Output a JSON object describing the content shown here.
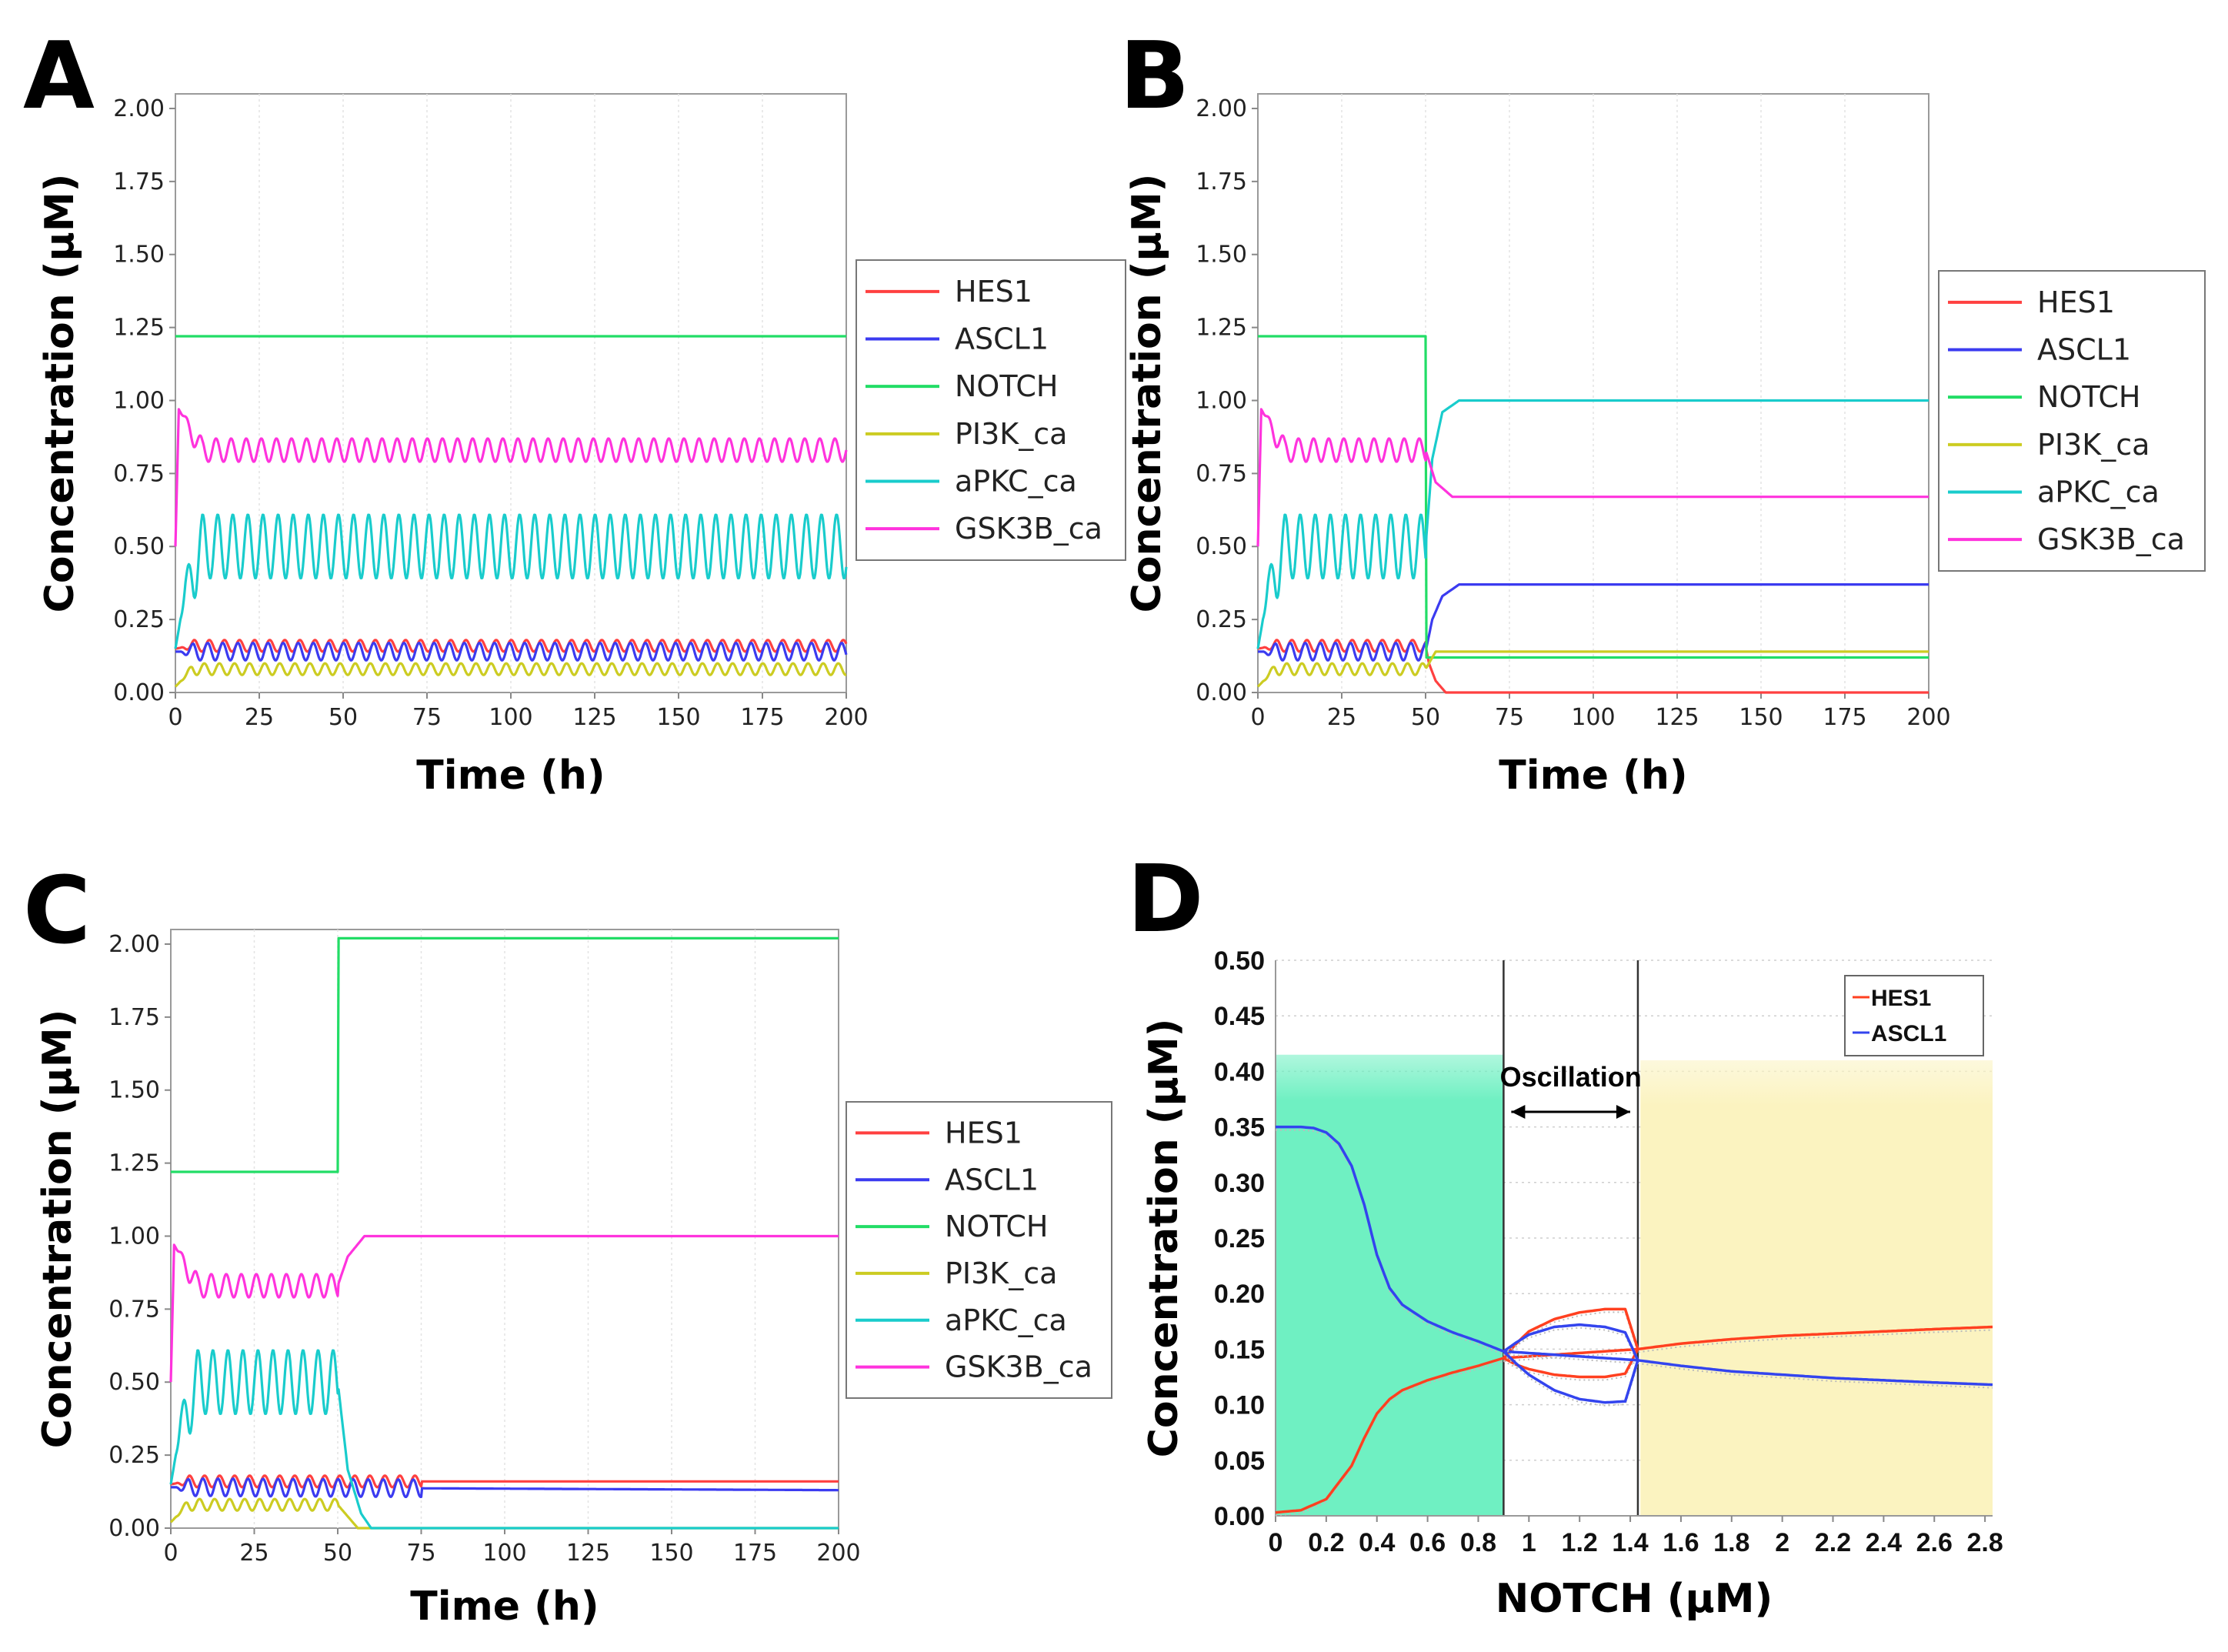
{
  "chart_data": [
    {
      "panel": "A",
      "type": "line",
      "xlabel": "Time (h)",
      "ylabel": "Concentration (µM)",
      "xlim": [
        0,
        200
      ],
      "ylim": [
        0,
        2.05
      ],
      "xticks": [
        "0",
        "25",
        "50",
        "75",
        "100",
        "125",
        "150",
        "175",
        "200"
      ],
      "yticks": [
        "0.00",
        "0.25",
        "0.50",
        "0.75",
        "1.00",
        "1.25",
        "1.50",
        "1.75",
        "2.00"
      ],
      "legend": [
        "HES1",
        "ASCL1",
        "NOTCH",
        "PI3K_ca",
        "aPKC_ca",
        "GSK3B_ca"
      ],
      "series": [
        {
          "name": "HES1",
          "color": "#ff4040",
          "x": [
            0,
            5,
            200
          ],
          "values": [
            0.15,
            0.16,
            0.16
          ],
          "oscillation": {
            "amplitude": 0.02,
            "period_h": 4.5
          }
        },
        {
          "name": "ASCL1",
          "color": "#3b3bf0",
          "x": [
            0,
            5,
            200
          ],
          "values": [
            0.14,
            0.14,
            0.14
          ],
          "oscillation": {
            "amplitude": 0.03,
            "period_h": 4.5
          }
        },
        {
          "name": "NOTCH",
          "color": "#22dd66",
          "x": [
            0,
            200
          ],
          "values": [
            1.22,
            1.22
          ]
        },
        {
          "name": "PI3K_ca",
          "color": "#cccc22",
          "x": [
            0,
            5,
            200
          ],
          "values": [
            0.02,
            0.08,
            0.08
          ],
          "oscillation": {
            "amplitude": 0.02,
            "period_h": 4.5
          }
        },
        {
          "name": "aPKC_ca",
          "color": "#19cccc",
          "x": [
            0,
            3,
            8,
            200
          ],
          "values": [
            0.15,
            0.35,
            0.5,
            0.5
          ],
          "oscillation": {
            "amplitude": 0.11,
            "period_h": 4.5
          }
        },
        {
          "name": "GSK3B_ca",
          "color": "#ff33dd",
          "x": [
            0,
            1,
            8,
            200
          ],
          "values": [
            0.5,
            0.97,
            0.83,
            0.83
          ],
          "oscillation": {
            "amplitude": 0.04,
            "period_h": 4.5
          }
        }
      ]
    },
    {
      "panel": "B",
      "type": "line",
      "xlabel": "Time (h)",
      "ylabel": "Concentration (µM)",
      "xlim": [
        0,
        200
      ],
      "ylim": [
        0,
        2.05
      ],
      "xticks": [
        "0",
        "25",
        "50",
        "75",
        "100",
        "125",
        "150",
        "175",
        "200"
      ],
      "yticks": [
        "0.00",
        "0.25",
        "0.50",
        "0.75",
        "1.00",
        "1.25",
        "1.50",
        "1.75",
        "2.00"
      ],
      "legend": [
        "HES1",
        "ASCL1",
        "NOTCH",
        "PI3K_ca",
        "aPKC_ca",
        "GSK3B_ca"
      ],
      "series": [
        {
          "name": "HES1",
          "color": "#ff4040",
          "x": [
            0,
            5,
            50,
            51,
            53,
            56,
            200
          ],
          "values": [
            0.15,
            0.16,
            0.16,
            0.1,
            0.04,
            0,
            0
          ],
          "oscillation": {
            "amplitude": 0.02,
            "period_h": 4.5,
            "until": 50
          }
        },
        {
          "name": "ASCL1",
          "color": "#3b3bf0",
          "x": [
            0,
            5,
            50,
            52,
            55,
            60,
            200
          ],
          "values": [
            0.14,
            0.14,
            0.14,
            0.25,
            0.33,
            0.37,
            0.37
          ],
          "oscillation": {
            "amplitude": 0.03,
            "period_h": 4.5,
            "until": 50
          }
        },
        {
          "name": "NOTCH",
          "color": "#22dd66",
          "x": [
            0,
            50,
            50.2,
            200
          ],
          "values": [
            1.22,
            1.22,
            0.12,
            0.12
          ]
        },
        {
          "name": "PI3K_ca",
          "color": "#cccc22",
          "x": [
            0,
            5,
            50,
            53,
            200
          ],
          "values": [
            0.02,
            0.08,
            0.08,
            0.14,
            0.14
          ],
          "oscillation": {
            "amplitude": 0.02,
            "period_h": 4.5,
            "until": 50
          }
        },
        {
          "name": "aPKC_ca",
          "color": "#19cccc",
          "x": [
            0,
            3,
            8,
            50,
            52,
            55,
            60,
            200
          ],
          "values": [
            0.15,
            0.35,
            0.5,
            0.5,
            0.8,
            0.96,
            1.0,
            1.0
          ],
          "oscillation": {
            "amplitude": 0.11,
            "period_h": 4.5,
            "until": 50
          }
        },
        {
          "name": "GSK3B_ca",
          "color": "#ff33dd",
          "x": [
            0,
            1,
            8,
            50,
            53,
            58,
            200
          ],
          "values": [
            0.5,
            0.97,
            0.83,
            0.83,
            0.72,
            0.67,
            0.67
          ],
          "oscillation": {
            "amplitude": 0.04,
            "period_h": 4.5,
            "until": 50
          }
        }
      ]
    },
    {
      "panel": "C",
      "type": "line",
      "xlabel": "Time (h)",
      "ylabel": "Concentration (µM)",
      "xlim": [
        0,
        200
      ],
      "ylim": [
        0,
        2.05
      ],
      "xticks": [
        "0",
        "25",
        "50",
        "75",
        "100",
        "125",
        "150",
        "175",
        "200"
      ],
      "yticks": [
        "0.00",
        "0.25",
        "0.50",
        "0.75",
        "1.00",
        "1.25",
        "1.50",
        "1.75",
        "2.00"
      ],
      "legend": [
        "HES1",
        "ASCL1",
        "NOTCH",
        "PI3K_ca",
        "aPKC_ca",
        "GSK3B_ca"
      ],
      "series": [
        {
          "name": "HES1",
          "color": "#ff4040",
          "x": [
            0,
            5,
            200
          ],
          "values": [
            0.15,
            0.16,
            0.16
          ],
          "oscillation": {
            "amplitude": 0.02,
            "period_h": 4.5,
            "until": 75
          }
        },
        {
          "name": "ASCL1",
          "color": "#3b3bf0",
          "x": [
            0,
            5,
            200
          ],
          "values": [
            0.14,
            0.14,
            0.13
          ],
          "oscillation": {
            "amplitude": 0.03,
            "period_h": 4.5,
            "until": 75
          }
        },
        {
          "name": "NOTCH",
          "color": "#22dd66",
          "x": [
            0,
            50,
            50.2,
            200
          ],
          "values": [
            1.22,
            1.22,
            2.02,
            2.02
          ]
        },
        {
          "name": "PI3K_ca",
          "color": "#cccc22",
          "x": [
            0,
            5,
            50,
            53,
            56,
            200
          ],
          "values": [
            0.02,
            0.08,
            0.08,
            0.04,
            0,
            0
          ],
          "oscillation": {
            "amplitude": 0.02,
            "period_h": 4.5,
            "until": 50
          }
        },
        {
          "name": "aPKC_ca",
          "color": "#19cccc",
          "x": [
            0,
            3,
            8,
            50,
            53,
            57,
            60,
            200
          ],
          "values": [
            0.15,
            0.35,
            0.5,
            0.5,
            0.2,
            0.05,
            0,
            0
          ],
          "oscillation": {
            "amplitude": 0.11,
            "period_h": 4.5,
            "until": 50
          }
        },
        {
          "name": "GSK3B_ca",
          "color": "#ff33dd",
          "x": [
            0,
            1,
            8,
            50,
            53,
            58,
            200
          ],
          "values": [
            0.5,
            0.97,
            0.83,
            0.83,
            0.93,
            1.0,
            1.0
          ],
          "oscillation": {
            "amplitude": 0.04,
            "period_h": 4.5,
            "until": 50
          }
        }
      ]
    },
    {
      "panel": "D",
      "type": "line",
      "xlabel": "NOTCH (µM)",
      "ylabel": "Concentration (µM)",
      "xlim": [
        0,
        2.83
      ],
      "ylim": [
        0,
        0.5
      ],
      "xticks": [
        "0",
        "0.2",
        "0.4",
        "0.6",
        "0.8",
        "1",
        "1.2",
        "1.4",
        "1.6",
        "1.8",
        "2",
        "2.2",
        "2.4",
        "2.6",
        "2.8"
      ],
      "yticks": [
        "0.00",
        "0.05",
        "0.10",
        "0.15",
        "0.20",
        "0.25",
        "0.30",
        "0.35",
        "0.40",
        "0.45",
        "0.50"
      ],
      "legend": [
        "HES1",
        "ASCL1"
      ],
      "annotation": "Oscillation",
      "regions": [
        {
          "from": 0,
          "to": 0.9,
          "color": "#6ff0c2",
          "ymax": 0.415
        },
        {
          "from": 1.44,
          "to": 2.83,
          "color": "#fbf3c0",
          "ymax": 0.41
        }
      ],
      "bifurcation_lines": [
        0.9,
        1.43
      ],
      "series": [
        {
          "name": "HES1",
          "color": "#ff4020",
          "x": [
            0,
            0.1,
            0.2,
            0.3,
            0.35,
            0.4,
            0.45,
            0.5,
            0.6,
            0.7,
            0.8,
            0.9,
            1.43,
            1.6,
            1.8,
            2.0,
            2.2,
            2.4,
            2.6,
            2.83
          ],
          "values": [
            0.003,
            0.005,
            0.015,
            0.045,
            0.07,
            0.092,
            0.105,
            0.113,
            0.122,
            0.129,
            0.135,
            0.142,
            0.15,
            0.155,
            0.159,
            0.162,
            0.164,
            0.166,
            0.168,
            0.17
          ]
        },
        {
          "name": "HES1 upper envelope",
          "color": "#ff4020",
          "x": [
            0.9,
            0.95,
            1.0,
            1.1,
            1.2,
            1.3,
            1.38,
            1.43
          ],
          "values": [
            0.142,
            0.155,
            0.166,
            0.177,
            0.183,
            0.186,
            0.186,
            0.15
          ]
        },
        {
          "name": "HES1 lower envelope",
          "color": "#ff4020",
          "x": [
            0.9,
            0.95,
            1.0,
            1.1,
            1.2,
            1.3,
            1.38,
            1.43
          ],
          "values": [
            0.142,
            0.136,
            0.132,
            0.127,
            0.125,
            0.125,
            0.128,
            0.15
          ]
        },
        {
          "name": "ASCL1",
          "color": "#3344ee",
          "x": [
            0,
            0.1,
            0.15,
            0.2,
            0.25,
            0.3,
            0.35,
            0.4,
            0.45,
            0.5,
            0.6,
            0.7,
            0.8,
            0.9,
            1.43,
            1.6,
            1.8,
            2.0,
            2.2,
            2.4,
            2.6,
            2.83
          ],
          "values": [
            0.35,
            0.35,
            0.349,
            0.345,
            0.335,
            0.315,
            0.28,
            0.235,
            0.205,
            0.19,
            0.175,
            0.165,
            0.157,
            0.148,
            0.14,
            0.135,
            0.13,
            0.127,
            0.124,
            0.122,
            0.12,
            0.118
          ]
        },
        {
          "name": "ASCL1 upper envelope",
          "color": "#3344ee",
          "x": [
            0.9,
            0.95,
            1.0,
            1.1,
            1.2,
            1.3,
            1.38,
            1.43
          ],
          "values": [
            0.148,
            0.156,
            0.163,
            0.17,
            0.172,
            0.17,
            0.165,
            0.14
          ]
        },
        {
          "name": "ASCL1 lower envelope",
          "color": "#3344ee",
          "x": [
            0.9,
            0.95,
            1.0,
            1.1,
            1.2,
            1.3,
            1.38,
            1.43
          ],
          "values": [
            0.148,
            0.137,
            0.127,
            0.113,
            0.105,
            0.102,
            0.103,
            0.14
          ]
        }
      ]
    }
  ]
}
